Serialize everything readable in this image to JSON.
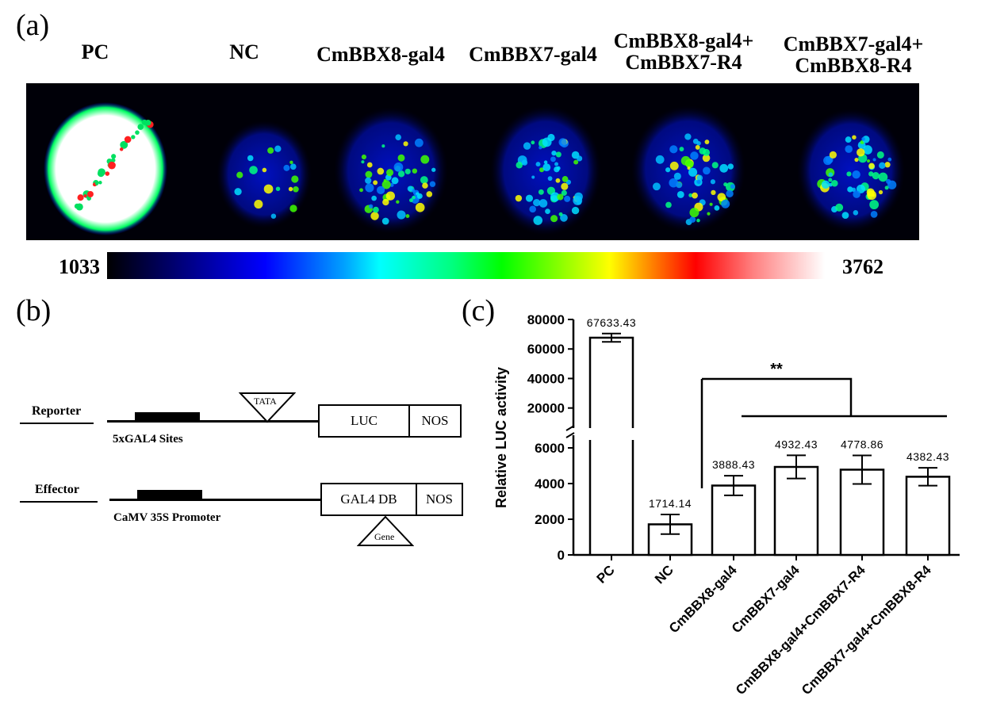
{
  "panels": {
    "a": "(a)",
    "b": "(b)",
    "c": "(c)"
  },
  "imaging": {
    "labels": [
      {
        "lines": [
          "PC"
        ]
      },
      {
        "lines": [
          "NC"
        ]
      },
      {
        "lines": [
          "CmBBX8-gal4"
        ]
      },
      {
        "lines": [
          "CmBBX7-gal4"
        ]
      },
      {
        "lines": [
          "CmBBX8-gal4+",
          "CmBBX7-R4"
        ]
      },
      {
        "lines": [
          "CmBBX7-gal4+",
          "CmBBX8-R4"
        ]
      }
    ],
    "scale_min": "1033",
    "scale_max": "3762"
  },
  "diagram": {
    "reporter": {
      "label": "Reporter",
      "promoter": "5xGAL4 Sites",
      "tata": "TATA",
      "box1": "LUC",
      "box2": "NOS"
    },
    "effector": {
      "label": "Effector",
      "promoter": "CaMV 35S Promoter",
      "box1": "GAL4 DB",
      "box2": "NOS",
      "gene": "Gene"
    }
  },
  "chart_data": {
    "type": "bar",
    "categories": [
      "PC",
      "NC",
      "CmBBX8-gal4",
      "CmBBX7-gal4",
      "CmBBX8-gal4+CmBBX7-R4",
      "CmBBX7-gal4+CmBBX8-R4"
    ],
    "values": [
      67633.43,
      1714.14,
      3888.43,
      4932.43,
      4778.86,
      4382.43
    ],
    "value_labels": [
      "67633.43",
      "1714.14",
      "3888.43",
      "4932.43",
      "4778.86",
      "4382.43"
    ],
    "errors": [
      2800,
      550,
      550,
      650,
      800,
      500
    ],
    "ylabel": "Relative LUC activity",
    "xlabel": "",
    "axis_break": true,
    "lower_ylim": [
      0,
      6000
    ],
    "upper_ylim": [
      15000,
      80000
    ],
    "lower_ticks": [
      "0",
      "2000",
      "4000",
      "6000"
    ],
    "upper_ticks": [
      "20000",
      "40000",
      "60000",
      "80000"
    ],
    "significance": "**",
    "grid": false
  }
}
